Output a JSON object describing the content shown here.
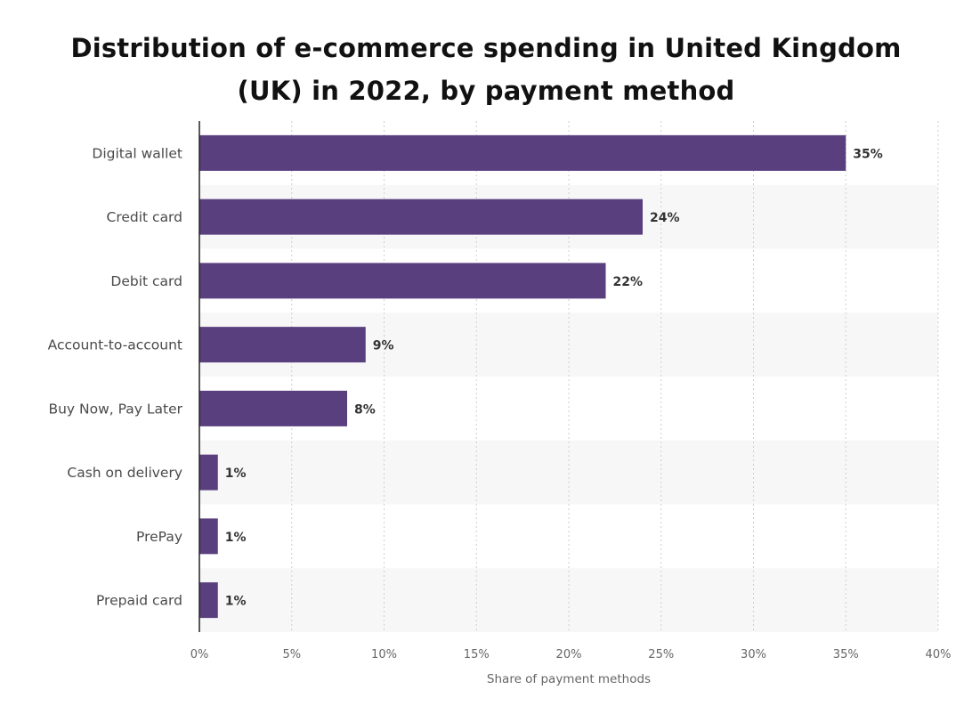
{
  "chart_data": {
    "type": "bar",
    "orientation": "horizontal",
    "title_lines": [
      "Distribution of e-commerce spending in United Kingdom",
      "(UK) in 2022, by payment method"
    ],
    "categories": [
      "Digital wallet",
      "Credit card",
      "Debit card",
      "Account-to-account",
      "Buy Now, Pay Later",
      "Cash on delivery",
      "PrePay",
      "Prepaid card"
    ],
    "values": [
      35,
      24,
      22,
      9,
      8,
      1,
      1,
      1
    ],
    "data_labels": [
      "35%",
      "24%",
      "22%",
      "9%",
      "8%",
      "1%",
      "1%",
      "1%"
    ],
    "xlabel": "Share of payment methods",
    "ylabel": "",
    "xlim": [
      0,
      40
    ],
    "ticks": [
      0,
      5,
      10,
      15,
      20,
      25,
      30,
      35,
      40
    ],
    "tick_labels": [
      "0%",
      "5%",
      "10%",
      "15%",
      "20%",
      "25%",
      "30%",
      "35%",
      "40%"
    ],
    "grid": true,
    "colors": {
      "bar": "#5a3f7e",
      "band": "#f7f7f8",
      "grid": "#cfcfcf",
      "axis": "#222222"
    }
  }
}
